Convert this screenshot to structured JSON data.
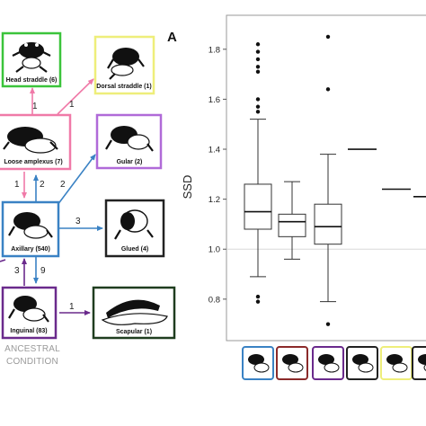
{
  "panel_letter": "A",
  "diagram": {
    "nodes": [
      {
        "id": "head",
        "label": "Head straddle (6)",
        "color": "#3bc43b",
        "icon": "frog-head-straddle-icon"
      },
      {
        "id": "dorsal",
        "label": "Dorsal straddle (1)",
        "color": "#eeee7a",
        "icon": "frog-dorsal-straddle-icon"
      },
      {
        "id": "loose",
        "label": "Loose amplexus (7)",
        "color": "#f07aa8",
        "icon": "frog-loose-amplexus-icon"
      },
      {
        "id": "gular",
        "label": "Gular (2)",
        "color": "#b06ad8",
        "icon": "frog-gular-icon"
      },
      {
        "id": "axillary",
        "label": "Axillary (540)",
        "color": "#3a82c4",
        "icon": "frog-axillary-icon"
      },
      {
        "id": "glued",
        "label": "Glued (4)",
        "color": "#222222",
        "icon": "frog-glued-icon"
      },
      {
        "id": "inguinal",
        "label": "Inguinal (83)",
        "color": "#6a2a8c",
        "icon": "frog-inguinal-icon"
      },
      {
        "id": "scapular",
        "label": "Scapular (1)",
        "color": "#1f3d1f",
        "icon": "frog-scapular-icon"
      }
    ],
    "edges": [
      {
        "from": "loose",
        "to": "head",
        "label": "1",
        "color": "#f07aa8"
      },
      {
        "from": "loose",
        "to": "dorsal",
        "label": "1",
        "color": "#f07aa8"
      },
      {
        "from": "loose",
        "to": "axillary",
        "label": "1",
        "color": "#f07aa8"
      },
      {
        "from": "axillary",
        "to": "loose",
        "label": "2",
        "color": "#3a82c4"
      },
      {
        "from": "axillary",
        "to": "gular",
        "label": "2",
        "color": "#3a82c4"
      },
      {
        "from": "axillary",
        "to": "glued",
        "label": "3",
        "color": "#3a82c4"
      },
      {
        "from": "inguinal",
        "to": "axillary",
        "label": "3",
        "color": "#6a2a8c"
      },
      {
        "from": "axillary",
        "to": "inguinal",
        "label": "9",
        "color": "#3a82c4"
      },
      {
        "from": "inguinal",
        "to": "scapular",
        "label": "1",
        "color": "#6a2a8c"
      }
    ],
    "ancestral_label": [
      "ANCESTRAL",
      "CONDITION"
    ]
  },
  "chart_data": {
    "type": "boxplot",
    "ylabel": "SSD",
    "ylim": [
      0.67,
      1.9
    ],
    "yticks": [
      0.8,
      1.0,
      1.2,
      1.4,
      1.6,
      1.8
    ],
    "tick_labels": [
      "0.8",
      "1.0",
      "1.2",
      "1.4",
      "1.6",
      "1.8"
    ],
    "reference_line": 1.0,
    "groups": [
      {
        "icon": "frog-axillary-icon",
        "color": "#3a82c4",
        "kind": "box",
        "q1": 1.08,
        "median": 1.15,
        "q3": 1.26,
        "whisker_low": 0.89,
        "whisker_high": 1.52,
        "outliers": [
          1.82,
          1.79,
          1.76,
          1.73,
          1.71,
          1.6,
          1.57,
          1.55,
          0.81,
          0.79
        ]
      },
      {
        "icon": "frog-inguinal-icon",
        "color": "#8b2a2a",
        "kind": "box",
        "q1": 1.05,
        "median": 1.11,
        "q3": 1.14,
        "whisker_low": 0.96,
        "whisker_high": 1.27,
        "outliers": []
      },
      {
        "icon": "frog-loose-amplexus-icon",
        "color": "#6a2a8c",
        "kind": "box",
        "q1": 1.02,
        "median": 1.09,
        "q3": 1.18,
        "whisker_low": 0.79,
        "whisker_high": 1.38,
        "outliers": [
          1.85,
          1.64,
          0.7
        ]
      },
      {
        "icon": "frog-glued-icon",
        "color": "#222222",
        "kind": "line",
        "value": 1.4
      },
      {
        "icon": "frog-dorsal-straddle-icon",
        "color": "#eeee7a",
        "kind": "line",
        "value": 1.24
      },
      {
        "icon": "frog-gular-icon",
        "color": "#222222",
        "kind": "line",
        "value": 1.21
      }
    ]
  }
}
